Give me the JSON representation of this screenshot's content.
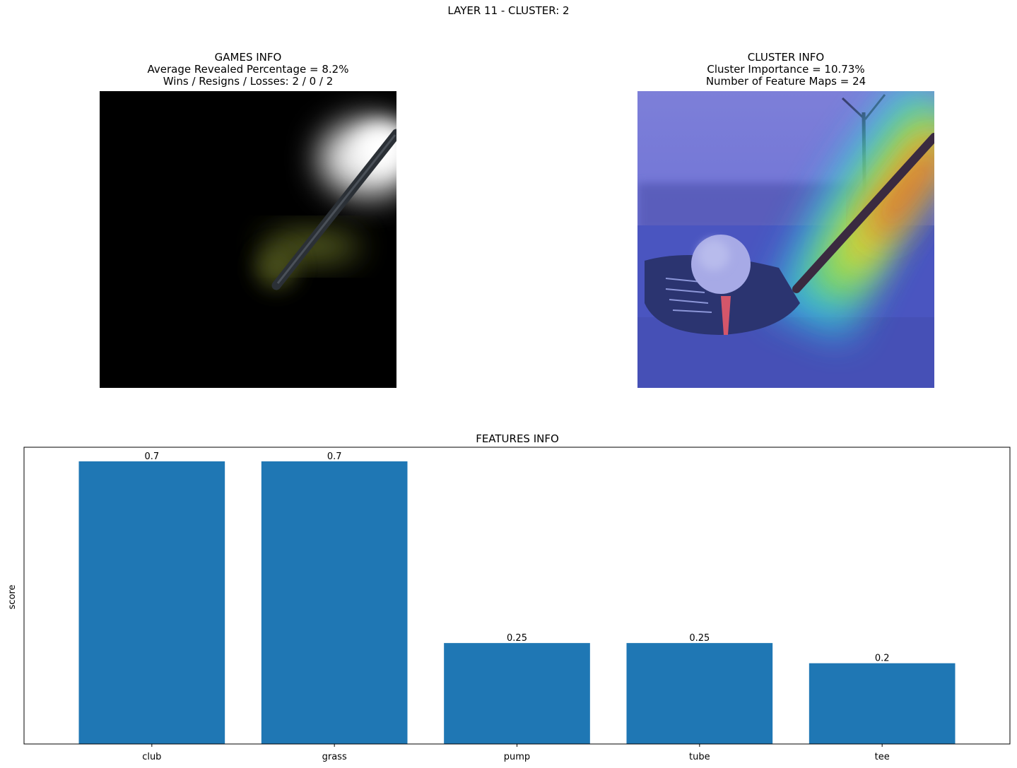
{
  "figure": {
    "suptitle": "LAYER 11 - CLUSTER: 2"
  },
  "games_panel": {
    "title": "GAMES INFO",
    "line1": "Average Revealed Percentage = 8.2%",
    "line2": "Wins / Resigns / Losses: 2 / 0 / 2"
  },
  "cluster_panel": {
    "title": "CLUSTER INFO",
    "line1": "Cluster Importance = 10.73%",
    "line2": "Number of Feature Maps = 24"
  },
  "chart_data": {
    "type": "bar",
    "title": "FEATURES INFO",
    "xlabel": "",
    "ylabel": "score",
    "categories": [
      "club",
      "grass",
      "pump",
      "tube",
      "tee"
    ],
    "values": [
      0.7,
      0.7,
      0.25,
      0.25,
      0.2
    ],
    "value_labels": [
      "0.7",
      "0.7",
      "0.25",
      "0.25",
      "0.2"
    ],
    "ylim": [
      0,
      0.735
    ],
    "bar_color": "#1f77b4",
    "grid": false,
    "y_ticks_visible": false
  }
}
